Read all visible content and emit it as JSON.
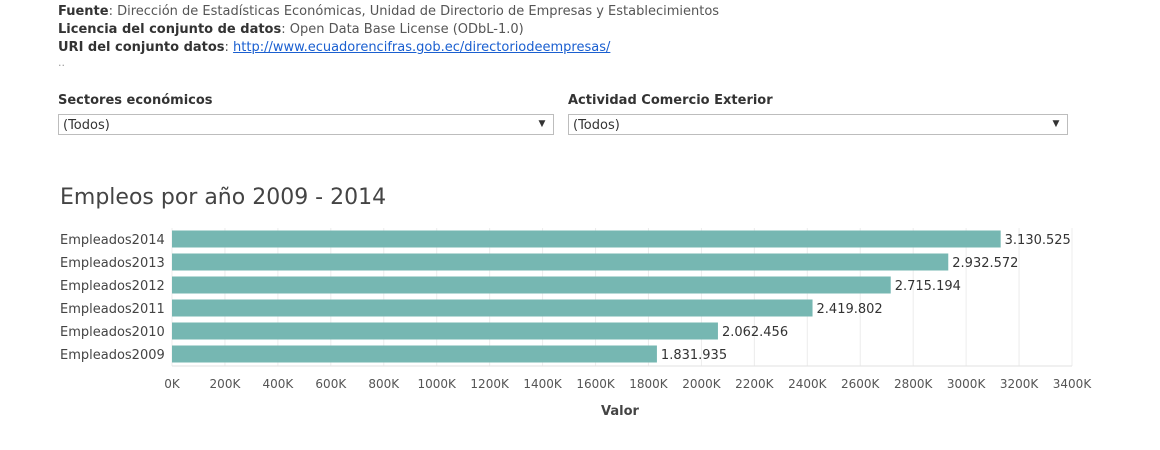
{
  "source": {
    "fuente_label": "Fuente",
    "fuente_value": ": Dirección de Estadísticas Económicas, Unidad de Directorio de Empresas y Establecimientos",
    "licencia_label": "Licencia del conjunto de datos",
    "licencia_value": ": Open Data Base License (ODbL-1.0)",
    "uri_label": "URI del conjunto datos",
    "uri_sep": ": ",
    "uri_link": "http://www.ecuadorencifras.gob.ec/directoriodeempresas/",
    "dots": ".."
  },
  "filters": [
    {
      "label": "Sectores económicos",
      "value": "(Todos)"
    },
    {
      "label": "Actividad Comercio Exterior",
      "value": "(Todos)"
    }
  ],
  "colors": {
    "bar": "#76b7b2",
    "grid": "#ececec",
    "text": "#333333"
  },
  "chart_data": {
    "type": "bar",
    "orientation": "horizontal",
    "title": "Empleos por año 2009 - 2014",
    "categories": [
      "Empleados2014",
      "Empleados2013",
      "Empleados2012",
      "Empleados2011",
      "Empleados2010",
      "Empleados2009"
    ],
    "values": [
      3130525,
      2932572,
      2715194,
      2419802,
      2062456,
      1831935
    ],
    "data_labels": [
      "3.130.525",
      "2.932.572",
      "2.715.194",
      "2.419.802",
      "2.062.456",
      "1.831.935"
    ],
    "xlabel": "Valor",
    "xlim": [
      0,
      3400000
    ],
    "x_ticks": [
      0,
      200000,
      400000,
      600000,
      800000,
      1000000,
      1200000,
      1400000,
      1600000,
      1800000,
      2000000,
      2200000,
      2400000,
      2600000,
      2800000,
      3000000,
      3200000,
      3400000
    ],
    "x_tick_labels": [
      "0K",
      "200K",
      "400K",
      "600K",
      "800K",
      "1000K",
      "1200K",
      "1400K",
      "1600K",
      "1800K",
      "2000K",
      "2200K",
      "2400K",
      "2600K",
      "2800K",
      "3000K",
      "3200K",
      "3400K"
    ],
    "grid": true
  }
}
